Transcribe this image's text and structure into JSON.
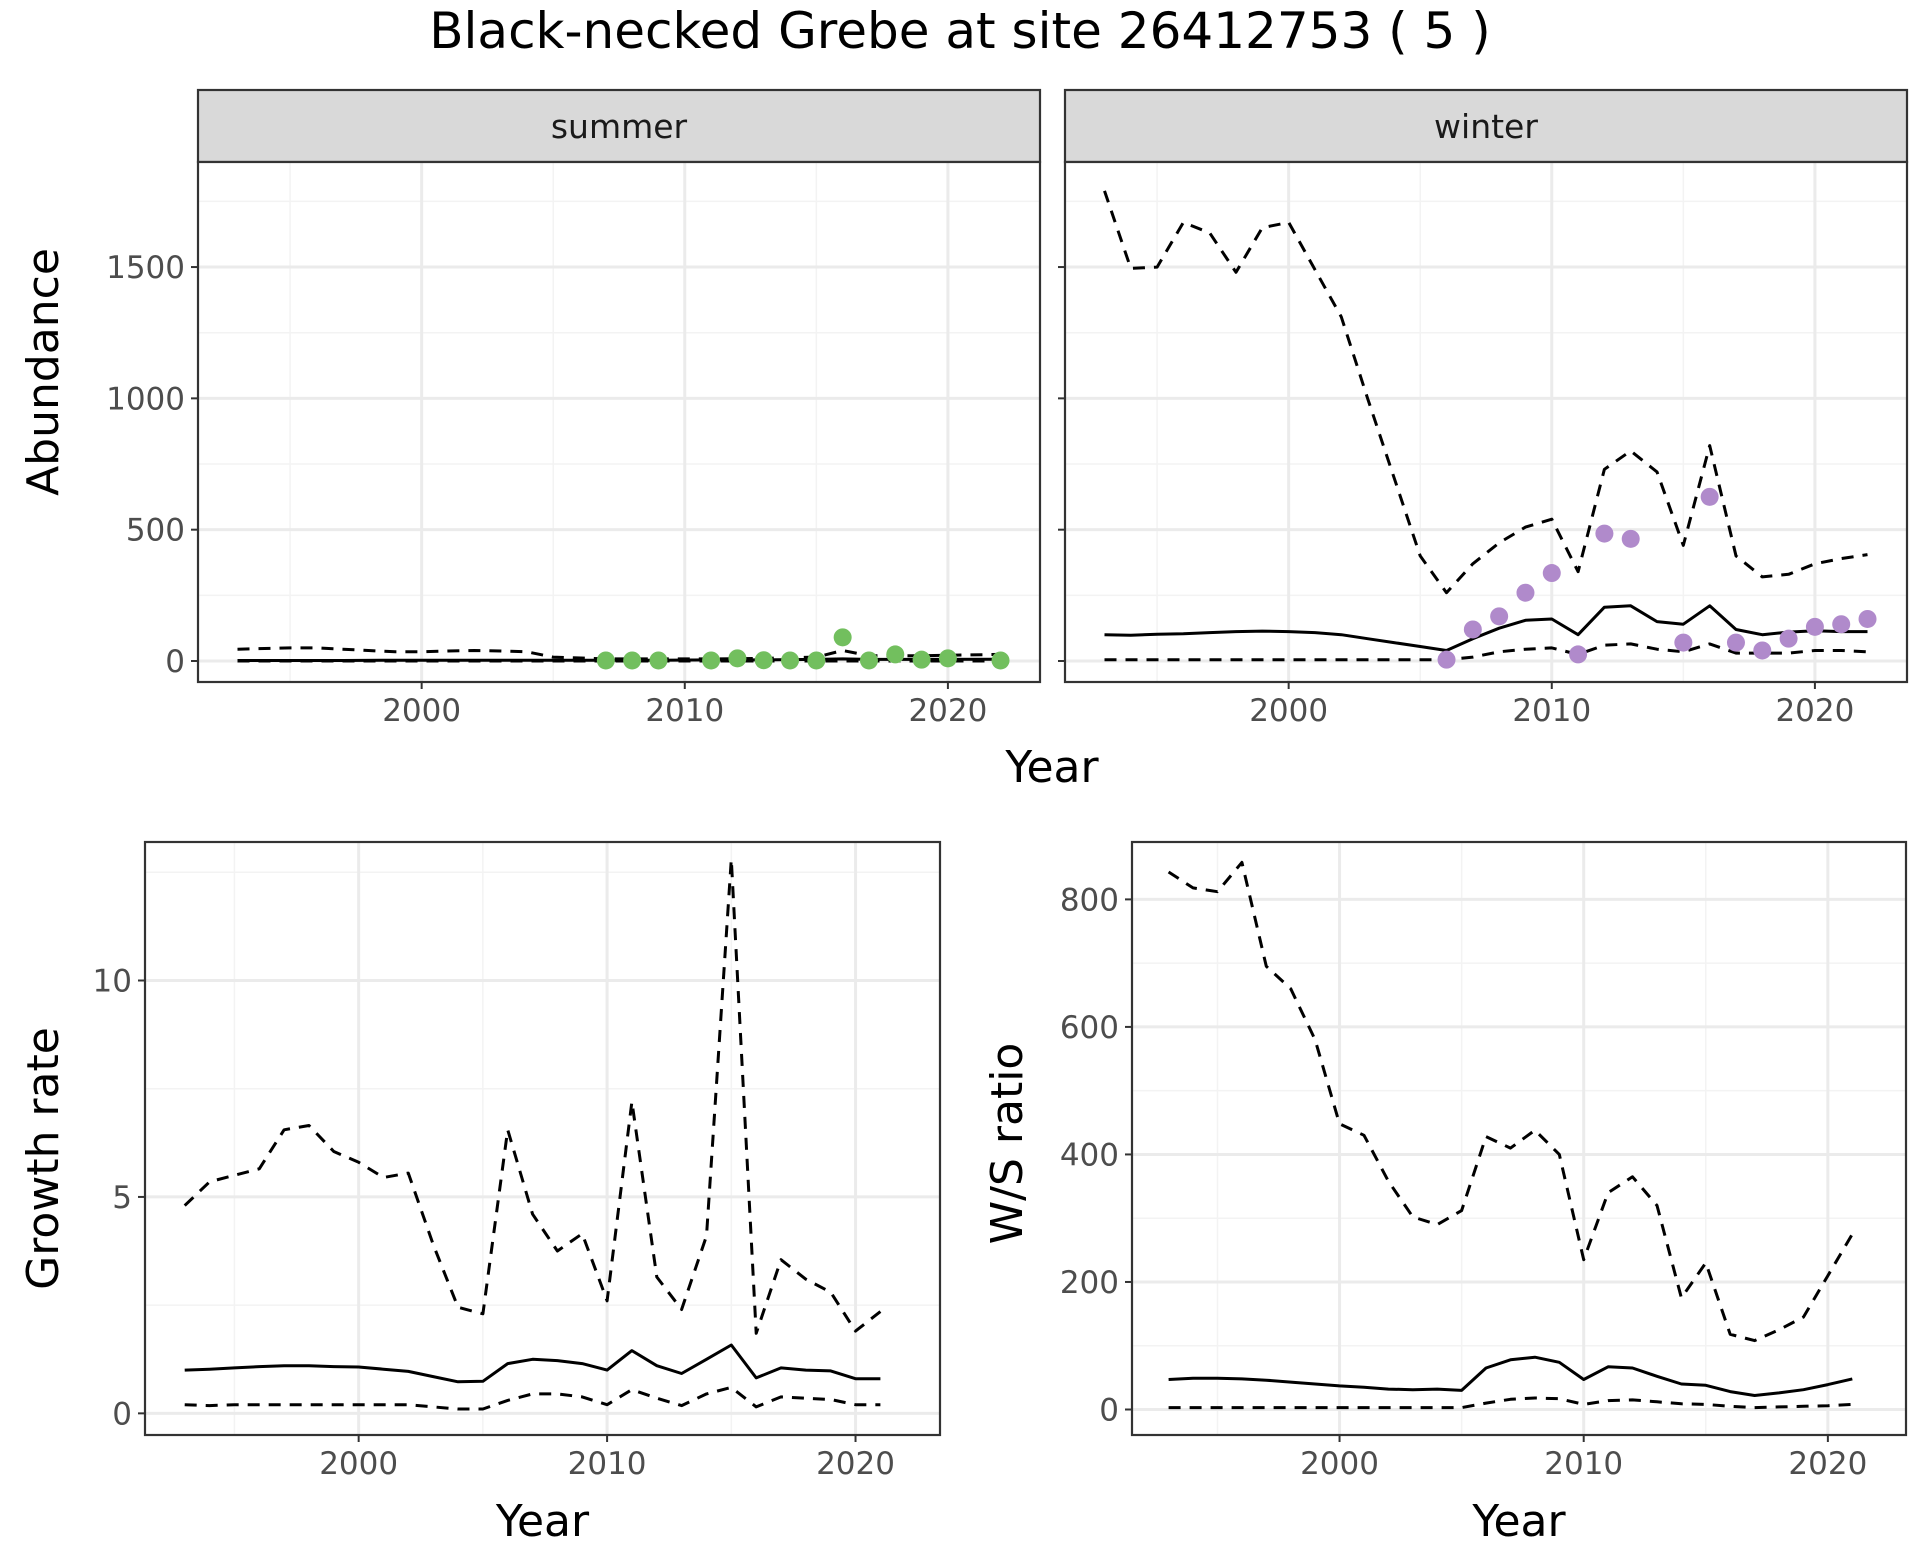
{
  "title": "Black-necked Grebe at site 26412753 ( 5 )",
  "colors": {
    "summer_points": "#72BF5E",
    "winter_points": "#B08ACB",
    "line": "#000000",
    "grid_major": "#EBEBEB",
    "grid_minor": "#F3F3F3",
    "strip_fill": "#D9D9D9",
    "frame": "#333333"
  },
  "chart_data": [
    {
      "id": "abundance",
      "type": "line",
      "ylabel": "Abundance",
      "xlabel": "Year",
      "xlim": [
        1991.5,
        2023.5
      ],
      "ylim": [
        -80,
        1900
      ],
      "x_ticks": [
        2000,
        2010,
        2020
      ],
      "y_ticks": [
        0,
        500,
        1000,
        1500
      ],
      "grid": true,
      "panels": [
        {
          "strip": "summer",
          "point_color": "#72BF5E",
          "series": [
            {
              "style": "solid",
              "x": [
                1993,
                1995,
                1997,
                1999,
                2001,
                2003,
                2005,
                2007,
                2009,
                2011,
                2013,
                2015,
                2016,
                2017,
                2019,
                2022
              ],
              "y": [
                2,
                2,
                2,
                3,
                3,
                3,
                3,
                3,
                3,
                4,
                4,
                6,
                8,
                6,
                6,
                7
              ]
            },
            {
              "style": "dashed",
              "x": [
                1993,
                1995,
                1996,
                1997,
                1999,
                2000,
                2001,
                2002,
                2003,
                2004,
                2005,
                2007,
                2009,
                2011,
                2013,
                2015,
                2016,
                2017,
                2019,
                2022
              ],
              "y": [
                45,
                50,
                50,
                45,
                35,
                35,
                38,
                40,
                38,
                35,
                15,
                8,
                8,
                8,
                10,
                15,
                40,
                20,
                20,
                25
              ]
            },
            {
              "style": "dashed",
              "x": [
                1993,
                2022
              ],
              "y": [
                0,
                0
              ]
            }
          ],
          "points": {
            "x": [
              2007,
              2008,
              2009,
              2011,
              2012,
              2013,
              2014,
              2015,
              2016,
              2017,
              2018,
              2019,
              2020,
              2022
            ],
            "y": [
              2,
              2,
              2,
              2,
              10,
              3,
              2,
              2,
              90,
              2,
              25,
              5,
              10,
              2
            ]
          }
        },
        {
          "strip": "winter",
          "point_color": "#B08ACB",
          "series": [
            {
              "style": "solid",
              "x": [
                1993,
                1994,
                1995,
                1996,
                1997,
                1998,
                1999,
                2000,
                2001,
                2002,
                2003,
                2004,
                2005,
                2006,
                2007,
                2008,
                2009,
                2010,
                2011,
                2012,
                2013,
                2014,
                2015,
                2016,
                2017,
                2018,
                2019,
                2020,
                2021,
                2022
              ],
              "y": [
                100,
                98,
                102,
                104,
                108,
                112,
                114,
                112,
                108,
                100,
                85,
                70,
                55,
                40,
                85,
                125,
                155,
                160,
                100,
                205,
                210,
                150,
                140,
                210,
                120,
                100,
                110,
                115,
                112,
                112
              ]
            },
            {
              "style": "dashed",
              "x": [
                1993,
                1994,
                1995,
                1996,
                1997,
                1998,
                1999,
                2000,
                2001,
                2002,
                2003,
                2004,
                2005,
                2006,
                2007,
                2008,
                2009,
                2010,
                2011,
                2012,
                2013,
                2014,
                2015,
                2016,
                2017,
                2018,
                2019,
                2020,
                2021,
                2022
              ],
              "y": [
                1790,
                1495,
                1500,
                1670,
                1630,
                1480,
                1650,
                1670,
                1490,
                1310,
                1000,
                700,
                400,
                260,
                370,
                450,
                510,
                540,
                340,
                730,
                800,
                720,
                440,
                820,
                400,
                320,
                330,
                370,
                390,
                405
              ]
            },
            {
              "style": "dashed",
              "x": [
                1993,
                1995,
                2000,
                2005,
                2006,
                2007,
                2008,
                2009,
                2010,
                2011,
                2012,
                2013,
                2014,
                2015,
                2016,
                2017,
                2018,
                2019,
                2020,
                2021,
                2022
              ],
              "y": [
                5,
                5,
                5,
                5,
                5,
                15,
                35,
                45,
                50,
                25,
                60,
                65,
                45,
                35,
                65,
                30,
                30,
                30,
                40,
                40,
                35
              ]
            }
          ],
          "points": {
            "x": [
              2006,
              2007,
              2008,
              2009,
              2010,
              2011,
              2012,
              2013,
              2015,
              2016,
              2017,
              2018,
              2019,
              2020,
              2021,
              2022
            ],
            "y": [
              5,
              120,
              170,
              260,
              335,
              25,
              485,
              465,
              70,
              625,
              70,
              40,
              85,
              130,
              140,
              160
            ]
          }
        }
      ]
    },
    {
      "id": "growth",
      "type": "line",
      "ylabel": "Growth rate",
      "xlabel": "Year",
      "xlim": [
        1991.4,
        2023.4
      ],
      "ylim": [
        -0.5,
        13.2
      ],
      "x_ticks": [
        2000,
        2010,
        2020
      ],
      "y_ticks": [
        0,
        5,
        10
      ],
      "grid": true,
      "series": [
        {
          "style": "solid",
          "x": [
            1993,
            1994,
            1995,
            1996,
            1997,
            1998,
            1999,
            2000,
            2001,
            2002,
            2003,
            2004,
            2005,
            2006,
            2007,
            2008,
            2009,
            2010,
            2011,
            2012,
            2013,
            2014,
            2015,
            2016,
            2017,
            2018,
            2019,
            2020,
            2021
          ],
          "y": [
            1.0,
            1.02,
            1.05,
            1.08,
            1.1,
            1.1,
            1.08,
            1.07,
            1.02,
            0.97,
            0.85,
            0.73,
            0.74,
            1.15,
            1.25,
            1.22,
            1.15,
            1.0,
            1.45,
            1.1,
            0.92,
            1.25,
            1.58,
            0.82,
            1.05,
            1.0,
            0.98,
            0.8,
            0.8
          ]
        },
        {
          "style": "dashed",
          "x": [
            1993,
            1994,
            1995,
            1996,
            1997,
            1998,
            1999,
            2000,
            2001,
            2002,
            2003,
            2004,
            2005,
            2006,
            2007,
            2008,
            2009,
            2010,
            2011,
            2012,
            2013,
            2014,
            2015,
            2016,
            2017,
            2018,
            2019,
            2020,
            2021
          ],
          "y": [
            4.8,
            5.35,
            5.5,
            5.65,
            6.55,
            6.65,
            6.05,
            5.8,
            5.45,
            5.55,
            3.9,
            2.45,
            2.3,
            6.55,
            4.6,
            3.75,
            4.15,
            2.6,
            7.2,
            3.15,
            2.4,
            4.1,
            12.8,
            1.85,
            3.55,
            3.1,
            2.8,
            1.9,
            2.35
          ]
        },
        {
          "style": "dashed",
          "x": [
            1993,
            1994,
            1995,
            1996,
            1997,
            1998,
            1999,
            2000,
            2001,
            2002,
            2003,
            2004,
            2005,
            2006,
            2007,
            2008,
            2009,
            2010,
            2011,
            2012,
            2013,
            2014,
            2015,
            2016,
            2017,
            2018,
            2019,
            2020,
            2021
          ],
          "y": [
            0.2,
            0.18,
            0.2,
            0.2,
            0.2,
            0.2,
            0.2,
            0.2,
            0.2,
            0.2,
            0.15,
            0.1,
            0.1,
            0.3,
            0.45,
            0.45,
            0.38,
            0.2,
            0.55,
            0.35,
            0.18,
            0.45,
            0.6,
            0.15,
            0.38,
            0.35,
            0.32,
            0.2,
            0.2
          ]
        }
      ]
    },
    {
      "id": "ratio",
      "type": "line",
      "ylabel": "W/S ratio",
      "xlabel": "Year",
      "xlim": [
        1991.5,
        2023.2
      ],
      "ylim": [
        -40,
        890
      ],
      "x_ticks": [
        2000,
        2010,
        2020
      ],
      "y_ticks": [
        0,
        200,
        400,
        600,
        800
      ],
      "grid": true,
      "series": [
        {
          "style": "solid",
          "x": [
            1993,
            1994,
            1995,
            1996,
            1997,
            1998,
            1999,
            2000,
            2001,
            2002,
            2003,
            2004,
            2005,
            2006,
            2007,
            2008,
            2009,
            2010,
            2011,
            2012,
            2013,
            2014,
            2015,
            2016,
            2017,
            2018,
            2019,
            2020,
            2021
          ],
          "y": [
            47,
            49,
            49,
            48,
            46,
            43,
            40,
            37,
            35,
            32,
            31,
            32,
            30,
            65,
            78,
            82,
            74,
            47,
            67,
            65,
            52,
            40,
            38,
            28,
            22,
            26,
            31,
            39,
            48
          ]
        },
        {
          "style": "dashed",
          "x": [
            1993,
            1994,
            1995,
            1996,
            1997,
            1998,
            1999,
            2000,
            2001,
            2002,
            2003,
            2004,
            2005,
            2006,
            2007,
            2008,
            2009,
            2010,
            2011,
            2012,
            2013,
            2014,
            2015,
            2016,
            2017,
            2018,
            2019,
            2020,
            2021
          ],
          "y": [
            843,
            818,
            812,
            858,
            695,
            660,
            580,
            448,
            430,
            358,
            302,
            290,
            312,
            428,
            410,
            438,
            400,
            235,
            340,
            365,
            320,
            175,
            230,
            118,
            108,
            125,
            145,
            210,
            275
          ]
        },
        {
          "style": "dashed",
          "x": [
            1993,
            1995,
            2000,
            2005,
            2006,
            2007,
            2008,
            2009,
            2010,
            2011,
            2012,
            2013,
            2014,
            2015,
            2016,
            2017,
            2018,
            2019,
            2020,
            2021
          ],
          "y": [
            3,
            3,
            3,
            3,
            10,
            16,
            18,
            17,
            8,
            14,
            15,
            12,
            9,
            8,
            5,
            3,
            4,
            5,
            6,
            8
          ]
        }
      ]
    }
  ]
}
